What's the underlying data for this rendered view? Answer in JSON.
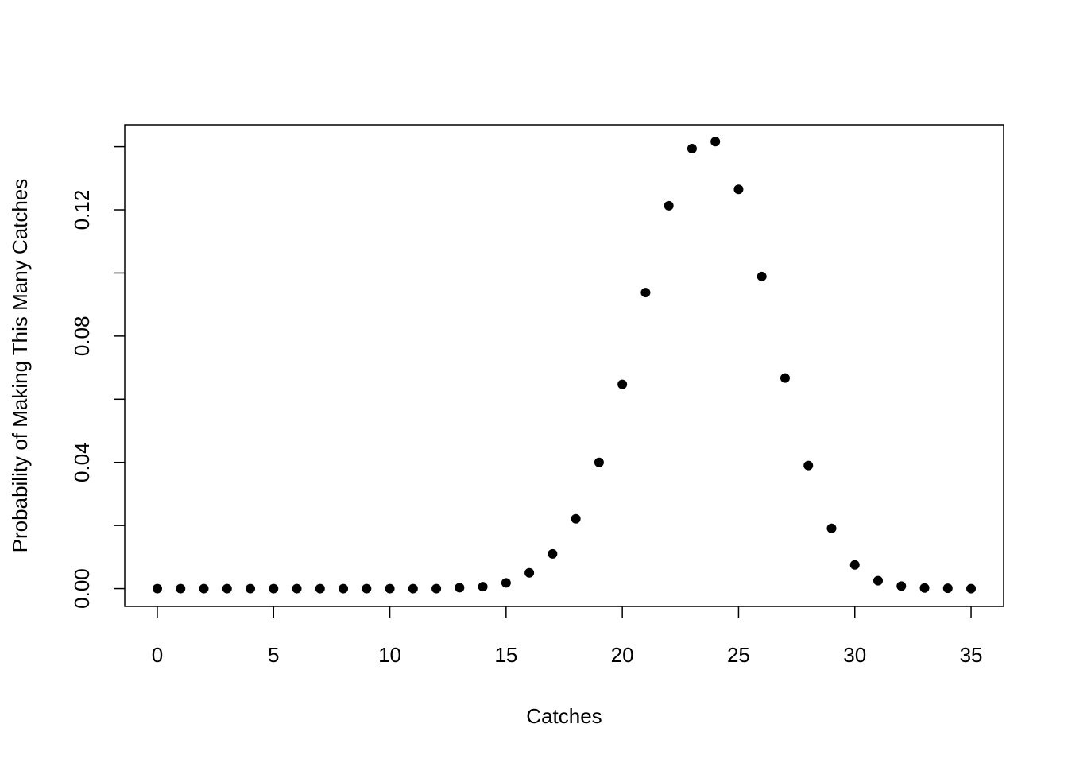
{
  "chart_data": {
    "type": "scatter",
    "x_label": "Catches",
    "y_label": "Probability of Making This Many Catches",
    "x": [
      0,
      1,
      2,
      3,
      4,
      5,
      6,
      7,
      8,
      9,
      10,
      11,
      12,
      13,
      14,
      15,
      16,
      17,
      18,
      19,
      20,
      21,
      22,
      23,
      24,
      25,
      26,
      27,
      28,
      29,
      30,
      31,
      32,
      33,
      34,
      35
    ],
    "values": [
      0,
      0,
      0,
      0,
      0,
      0,
      0,
      0,
      0,
      0,
      0,
      0,
      0,
      0.0003,
      0.0006,
      0.0018,
      0.005,
      0.011,
      0.0221,
      0.04,
      0.0647,
      0.0938,
      0.1213,
      0.1394,
      0.1416,
      0.1265,
      0.0989,
      0.0667,
      0.039,
      0.0191,
      0.0075,
      0.0025,
      0.0008,
      0.0002,
      0.0001,
      0
    ],
    "color": "#000000",
    "xlim": [
      -1.4,
      36.4
    ],
    "ylim": [
      -0.00565,
      0.14695
    ],
    "xticks": [
      0,
      5,
      10,
      15,
      20,
      25,
      30,
      35
    ],
    "yticks": [
      {
        "value": 0,
        "label": "0.00"
      },
      0.04,
      0.08,
      0.12
    ],
    "yticks_unlabeled": [
      0.02,
      0.06,
      0.1,
      0.14
    ]
  }
}
